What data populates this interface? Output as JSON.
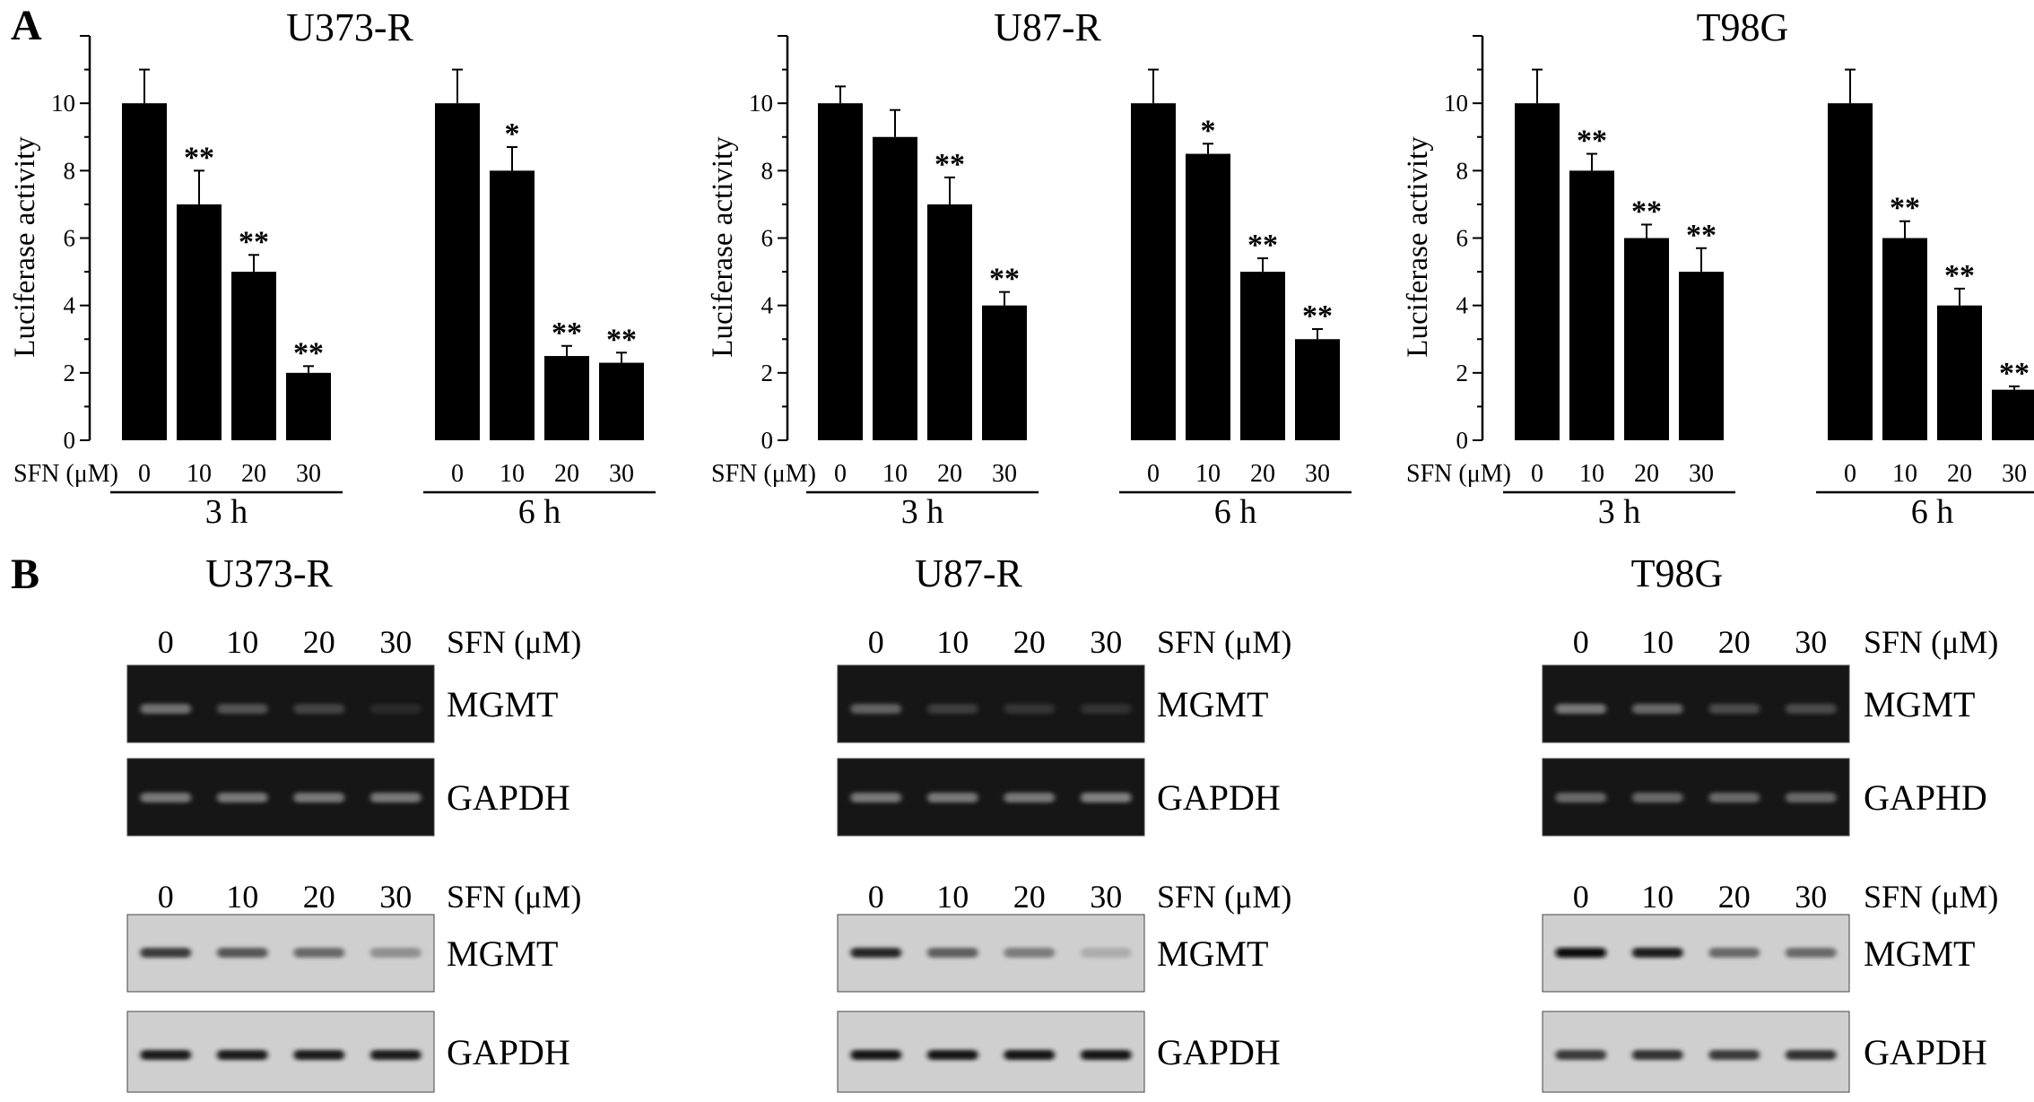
{
  "panels": {
    "a": "A",
    "b": "B"
  },
  "chart_data": [
    {
      "type": "bar",
      "title": "U373-R",
      "ylabel": "Luciferase activity",
      "ylim": [
        0,
        12
      ],
      "yticks": [
        0,
        2,
        4,
        6,
        8,
        10
      ],
      "x_prefix": "SFN (μM)",
      "groups": [
        {
          "label": "3 h",
          "categories": [
            "0",
            "10",
            "20",
            "30"
          ],
          "values": [
            10,
            7,
            5,
            2
          ],
          "errors": [
            1.0,
            1.0,
            0.5,
            0.2
          ],
          "significance": [
            "",
            "**",
            "**",
            "**"
          ]
        },
        {
          "label": "6 h",
          "categories": [
            "0",
            "10",
            "20",
            "30"
          ],
          "values": [
            10,
            8,
            2.5,
            2.3
          ],
          "errors": [
            1.0,
            0.7,
            0.3,
            0.3
          ],
          "significance": [
            "",
            "*",
            "**",
            "**"
          ]
        }
      ]
    },
    {
      "type": "bar",
      "title": "U87-R",
      "ylabel": "Luciferase activity",
      "ylim": [
        0,
        12
      ],
      "yticks": [
        0,
        2,
        4,
        6,
        8,
        10
      ],
      "x_prefix": "SFN (μM)",
      "groups": [
        {
          "label": "3 h",
          "categories": [
            "0",
            "10",
            "20",
            "30"
          ],
          "values": [
            10,
            9,
            7,
            4
          ],
          "errors": [
            0.5,
            0.8,
            0.8,
            0.4
          ],
          "significance": [
            "",
            "",
            "**",
            "**"
          ]
        },
        {
          "label": "6 h",
          "categories": [
            "0",
            "10",
            "20",
            "30"
          ],
          "values": [
            10,
            8.5,
            5,
            3
          ],
          "errors": [
            1.0,
            0.3,
            0.4,
            0.3
          ],
          "significance": [
            "",
            "*",
            "**",
            "**"
          ]
        }
      ]
    },
    {
      "type": "bar",
      "title": "T98G",
      "ylabel": "Luciferase activity",
      "ylim": [
        0,
        12
      ],
      "yticks": [
        0,
        2,
        4,
        6,
        8,
        10
      ],
      "x_prefix": "SFN (μM)",
      "groups": [
        {
          "label": "3 h",
          "categories": [
            "0",
            "10",
            "20",
            "30"
          ],
          "values": [
            10,
            8,
            6,
            5
          ],
          "errors": [
            1.0,
            0.5,
            0.4,
            0.7
          ],
          "significance": [
            "",
            "**",
            "**",
            "**"
          ]
        },
        {
          "label": "6 h",
          "categories": [
            "0",
            "10",
            "20",
            "30"
          ],
          "values": [
            10,
            6,
            4,
            1.5
          ],
          "errors": [
            1.0,
            0.5,
            0.5,
            0.1
          ],
          "significance": [
            "",
            "**",
            "**",
            "**"
          ]
        }
      ]
    }
  ],
  "blots": [
    {
      "title": "U373-R",
      "lane_label": "SFN (μM)",
      "lanes": [
        "0",
        "10",
        "20",
        "30"
      ],
      "gel": [
        {
          "name": "MGMT",
          "intensity": [
            0.55,
            0.35,
            0.25,
            0.08
          ]
        },
        {
          "name": "GAPDH",
          "intensity": [
            0.6,
            0.6,
            0.6,
            0.6
          ]
        }
      ],
      "western": [
        {
          "name": "MGMT",
          "intensity": [
            0.75,
            0.6,
            0.5,
            0.3
          ]
        },
        {
          "name": "GAPDH",
          "intensity": [
            0.9,
            0.9,
            0.9,
            0.9
          ]
        }
      ]
    },
    {
      "title": "U87-R",
      "lane_label": "SFN (μM)",
      "lanes": [
        "0",
        "10",
        "20",
        "30"
      ],
      "gel": [
        {
          "name": "MGMT",
          "intensity": [
            0.45,
            0.2,
            0.15,
            0.12
          ]
        },
        {
          "name": "GAPDH",
          "intensity": [
            0.6,
            0.6,
            0.6,
            0.65
          ]
        }
      ],
      "western": [
        {
          "name": "MGMT",
          "intensity": [
            0.85,
            0.55,
            0.4,
            0.15
          ]
        },
        {
          "name": "GAPDH",
          "intensity": [
            0.95,
            0.95,
            0.95,
            0.95
          ]
        }
      ]
    },
    {
      "title": "T98G",
      "lane_label": "SFN (μM)",
      "lanes": [
        "0",
        "10",
        "20",
        "30"
      ],
      "gel": [
        {
          "name": "MGMT",
          "intensity": [
            0.6,
            0.5,
            0.3,
            0.3
          ]
        },
        {
          "name": "GAPHD",
          "intensity": [
            0.5,
            0.5,
            0.5,
            0.5
          ]
        }
      ],
      "western": [
        {
          "name": "MGMT",
          "intensity": [
            1.0,
            0.9,
            0.5,
            0.5
          ]
        },
        {
          "name": "GAPDH",
          "intensity": [
            0.75,
            0.8,
            0.75,
            0.8
          ]
        }
      ]
    }
  ]
}
